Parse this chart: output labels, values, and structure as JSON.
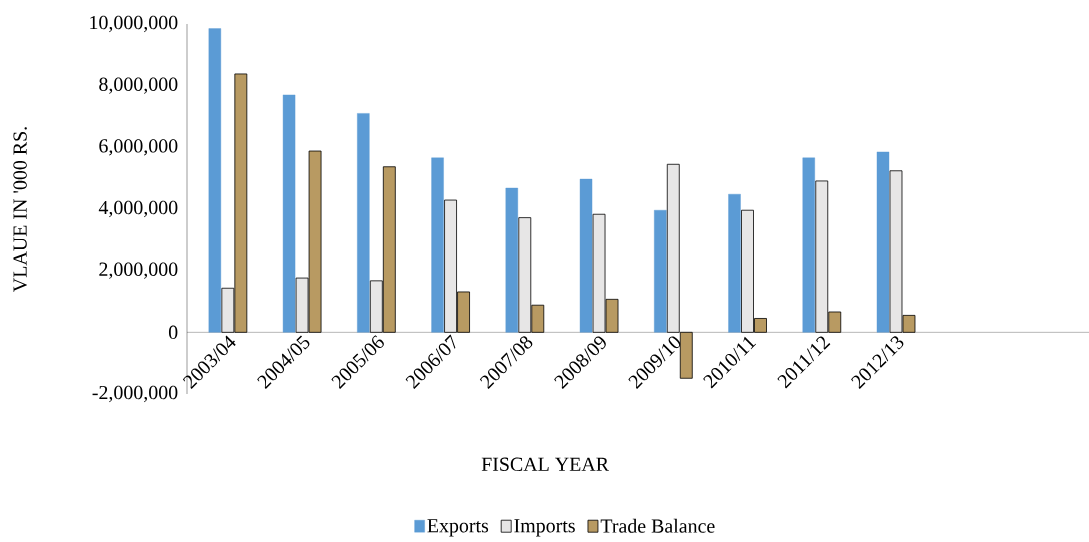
{
  "chart_data": {
    "type": "bar",
    "xlabel": "FISCAL YEAR",
    "ylabel": "VLAUE IN '000 RS.",
    "categories": [
      "2003/04",
      "2004/05",
      "2005/06",
      "2006/07",
      "2007/08",
      "2008/09",
      "2009/10",
      "2010/11",
      "2011/12",
      "2012/13"
    ],
    "series": [
      {
        "name": "Exports",
        "color": "#5b9bd5",
        "values": [
          9850000,
          7700000,
          7100000,
          5660000,
          4680000,
          4970000,
          3960000,
          4480000,
          5660000,
          5850000
        ]
      },
      {
        "name": "Imports",
        "color": "#e7e6e6",
        "values": [
          1430000,
          1760000,
          1670000,
          4290000,
          3720000,
          3830000,
          5450000,
          3960000,
          4910000,
          5240000
        ]
      },
      {
        "name": "Trade Balance",
        "color": "#b89a62",
        "values": [
          8380000,
          5880000,
          5370000,
          1310000,
          880000,
          1070000,
          -1490000,
          450000,
          660000,
          550000
        ]
      }
    ],
    "ylim": [
      -2000000,
      10000000
    ],
    "yticks": [
      {
        "value": -2000000,
        "label": "-2,000,000"
      },
      {
        "value": 0,
        "label": "0"
      },
      {
        "value": 2000000,
        "label": "2,000,000"
      },
      {
        "value": 4000000,
        "label": "4,000,000"
      },
      {
        "value": 6000000,
        "label": "6,000,000"
      },
      {
        "value": 8000000,
        "label": "8,000,000"
      },
      {
        "value": 10000000,
        "label": "10,000,000"
      }
    ],
    "grid": false,
    "legend": "bottom"
  }
}
